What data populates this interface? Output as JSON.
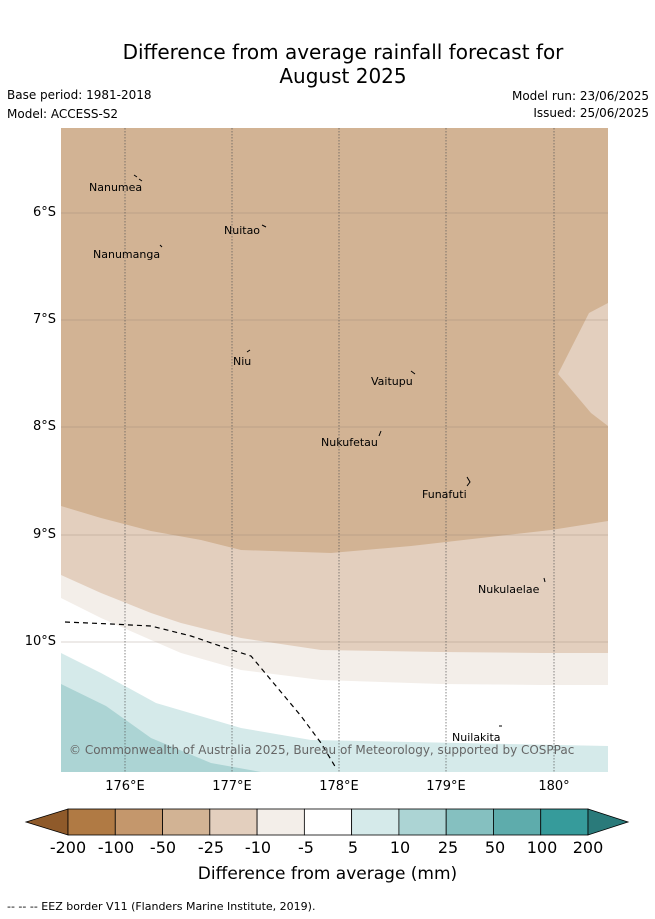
{
  "title": {
    "line1": "Difference from average rainfall forecast for",
    "line2": "August 2025"
  },
  "meta": {
    "base_period": "Base period: 1981-2018",
    "model": "Model: ACCESS-S2",
    "model_run": "Model run: 23/06/2025",
    "issued": "Issued: 25/06/2025"
  },
  "map": {
    "lat_labels": [
      "6°S",
      "7°S",
      "8°S",
      "9°S",
      "10°S"
    ],
    "lon_labels": [
      "176°E",
      "177°E",
      "178°E",
      "179°E",
      "180°"
    ],
    "places": [
      "Nanumea",
      "Nuitao",
      "Nanumanga",
      "Niu",
      "Vaitupu",
      "Nukufetau",
      "Funafuti",
      "Nukulaelae",
      "Nuilakita"
    ],
    "copyright": "© Commonwealth of Australia 2025, Bureau of Meteorology, supported by COSPPac"
  },
  "colorbar": {
    "ticks": [
      "-200",
      "-100",
      "-50",
      "-25",
      "-10",
      "-5",
      "5",
      "10",
      "25",
      "50",
      "100",
      "200"
    ],
    "colors": [
      "#8f5a2a",
      "#b07a44",
      "#c4976c",
      "#d2b394",
      "#e3cfbe",
      "#f3eee9",
      "#ffffff",
      "#d5eaea",
      "#acd4d4",
      "#85c0c0",
      "#5eacac",
      "#369b9b",
      "#2a7a7a"
    ],
    "label": "Difference from average (mm)"
  },
  "footer": {
    "eez": "--  --  -- EEZ border V11 (Flanders Marine Institute, 2019)."
  }
}
